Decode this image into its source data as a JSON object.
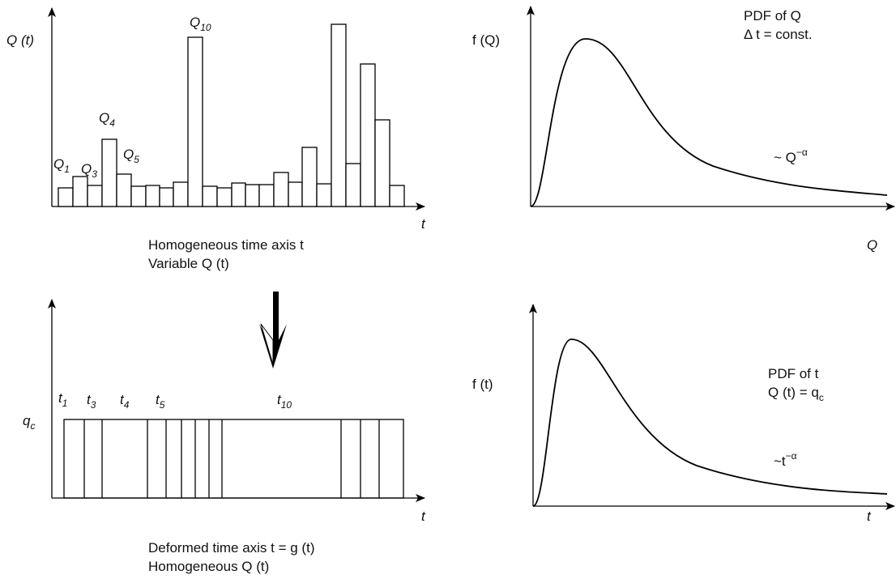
{
  "top_left": {
    "y_label": "Q (t)",
    "x_label": "t",
    "peaks": [
      {
        "base": "Q",
        "sub": "1"
      },
      {
        "base": "Q",
        "sub": "3"
      },
      {
        "base": "Q",
        "sub": "4"
      },
      {
        "base": "Q",
        "sub": "5"
      },
      {
        "base": "Q",
        "sub": "10"
      }
    ],
    "caption": [
      "Homogeneous time axis t",
      "Variable Q (t)"
    ]
  },
  "bottom_left": {
    "y_label": {
      "base": "q",
      "sub": "c"
    },
    "x_label": "t",
    "events": [
      {
        "base": "t",
        "sub": "1"
      },
      {
        "base": "t",
        "sub": "3"
      },
      {
        "base": "t",
        "sub": "4"
      },
      {
        "base": "t",
        "sub": "5"
      },
      {
        "base": "t",
        "sub": "10"
      }
    ],
    "caption": [
      "Deformed time axis t = g (t)",
      "Homogeneous Q (t)"
    ]
  },
  "top_right": {
    "y_label": "f (Q)",
    "x_label": "Q",
    "note": [
      "PDF of Q",
      "Δ t = const."
    ],
    "tail": {
      "base": "~ Q",
      "sup": "−α"
    }
  },
  "bottom_right": {
    "y_label": "f (t)",
    "x_label": "t",
    "note": [
      "PDF of t",
      {
        "base": "Q (t) = q",
        "sub": "c"
      }
    ],
    "tail": {
      "base": "~t",
      "sup": "−α"
    }
  }
}
